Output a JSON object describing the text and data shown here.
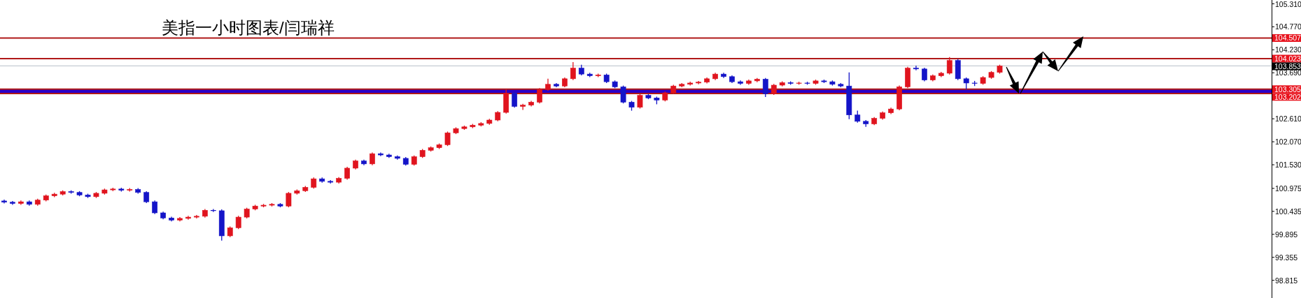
{
  "chart_data": {
    "type": "candlestick",
    "title": "美指一小时图表/闫瑞祥",
    "categories": [
      null,
      null,
      null,
      null,
      null,
      null,
      null,
      null,
      null,
      null,
      null,
      null,
      null,
      null,
      null,
      null,
      null,
      null,
      null,
      null,
      null,
      null,
      null,
      null,
      null,
      null,
      null,
      null,
      null,
      null,
      null,
      null,
      null,
      null,
      null,
      null,
      null,
      null,
      null,
      null,
      null,
      null,
      null,
      null,
      null,
      null,
      null,
      null,
      null,
      null,
      null,
      null,
      null,
      null,
      null,
      null,
      null,
      null,
      null,
      null,
      null,
      null,
      null,
      null,
      null,
      null,
      null,
      null,
      null,
      null,
      null,
      null,
      null,
      null,
      null,
      null,
      null,
      null,
      null,
      null,
      null,
      null,
      null,
      null,
      null,
      null,
      null,
      null,
      null,
      null,
      null,
      null,
      null,
      null,
      null,
      null,
      null,
      null,
      null,
      null,
      null,
      null,
      null,
      null,
      null,
      null,
      null,
      null,
      null,
      null,
      null,
      null,
      null,
      null,
      null,
      null,
      null,
      null,
      null,
      null,
      null,
      null,
      null,
      null,
      null,
      null,
      null,
      null,
      null,
      null,
      null,
      null,
      null,
      null,
      null,
      null,
      null,
      null,
      null,
      null,
      null,
      null,
      null,
      null,
      null,
      null,
      null,
      null,
      null,
      null,
      null,
      null
    ],
    "ohlc": [
      [
        100.68,
        100.71,
        100.62,
        100.65
      ],
      [
        100.65,
        100.68,
        100.59,
        100.62
      ],
      [
        100.62,
        100.69,
        100.59,
        100.66
      ],
      [
        100.66,
        100.69,
        100.57,
        100.6
      ],
      [
        100.6,
        100.73,
        100.57,
        100.7
      ],
      [
        100.7,
        100.83,
        100.67,
        100.8
      ],
      [
        100.8,
        100.87,
        100.77,
        100.84
      ],
      [
        100.84,
        100.93,
        100.81,
        100.9
      ],
      [
        100.9,
        100.93,
        100.85,
        100.88
      ],
      [
        100.88,
        100.91,
        100.79,
        100.82
      ],
      [
        100.82,
        100.85,
        100.75,
        100.78
      ],
      [
        100.78,
        100.89,
        100.75,
        100.86
      ],
      [
        100.86,
        100.97,
        100.83,
        100.94
      ],
      [
        100.94,
        100.99,
        100.91,
        100.96
      ],
      [
        100.96,
        100.99,
        100.9,
        100.93
      ],
      [
        100.93,
        100.98,
        100.9,
        100.95
      ],
      [
        100.95,
        100.98,
        100.85,
        100.88
      ],
      [
        100.88,
        100.91,
        100.63,
        100.66
      ],
      [
        100.66,
        100.69,
        100.37,
        100.4
      ],
      [
        100.4,
        100.43,
        100.25,
        100.28
      ],
      [
        100.28,
        100.31,
        100.2,
        100.23
      ],
      [
        100.23,
        100.3,
        100.2,
        100.27
      ],
      [
        100.27,
        100.33,
        100.24,
        100.3
      ],
      [
        100.3,
        100.35,
        100.27,
        100.32
      ],
      [
        100.32,
        100.49,
        100.29,
        100.46
      ],
      [
        100.46,
        100.49,
        100.42,
        100.45
      ],
      [
        100.45,
        100.48,
        99.75,
        99.86
      ],
      [
        99.86,
        100.08,
        99.83,
        100.05
      ],
      [
        100.05,
        100.33,
        100.02,
        100.3
      ],
      [
        100.3,
        100.52,
        100.27,
        100.49
      ],
      [
        100.49,
        100.59,
        100.46,
        100.56
      ],
      [
        100.56,
        100.61,
        100.53,
        100.58
      ],
      [
        100.58,
        100.63,
        100.55,
        100.6
      ],
      [
        100.6,
        100.63,
        100.53,
        100.56
      ],
      [
        100.56,
        100.89,
        100.53,
        100.86
      ],
      [
        100.86,
        100.95,
        100.83,
        100.92
      ],
      [
        100.92,
        101.03,
        100.89,
        101.0
      ],
      [
        101.0,
        101.23,
        100.97,
        101.2
      ],
      [
        101.2,
        101.23,
        101.11,
        101.14
      ],
      [
        101.14,
        101.17,
        101.09,
        101.12
      ],
      [
        101.12,
        101.24,
        101.09,
        101.21
      ],
      [
        101.21,
        101.48,
        101.18,
        101.45
      ],
      [
        101.45,
        101.65,
        101.42,
        101.62
      ],
      [
        101.62,
        101.65,
        101.52,
        101.55
      ],
      [
        101.55,
        101.82,
        101.52,
        101.79
      ],
      [
        101.79,
        101.82,
        101.73,
        101.76
      ],
      [
        101.76,
        101.79,
        101.69,
        101.72
      ],
      [
        101.72,
        101.75,
        101.65,
        101.68
      ],
      [
        101.68,
        101.71,
        101.51,
        101.54
      ],
      [
        101.54,
        101.75,
        101.51,
        101.72
      ],
      [
        101.72,
        101.9,
        101.69,
        101.87
      ],
      [
        101.87,
        101.96,
        101.84,
        101.93
      ],
      [
        101.93,
        102.03,
        101.9,
        102.0
      ],
      [
        102.0,
        102.31,
        101.97,
        102.28
      ],
      [
        102.28,
        102.41,
        102.25,
        102.38
      ],
      [
        102.38,
        102.45,
        102.35,
        102.42
      ],
      [
        102.42,
        102.49,
        102.39,
        102.46
      ],
      [
        102.46,
        102.53,
        102.43,
        102.5
      ],
      [
        102.5,
        102.61,
        102.47,
        102.58
      ],
      [
        102.58,
        102.79,
        102.55,
        102.76
      ],
      [
        102.76,
        103.3,
        102.73,
        103.21
      ],
      [
        103.21,
        103.24,
        102.87,
        102.9
      ],
      [
        102.9,
        102.96,
        102.82,
        102.93
      ],
      [
        102.93,
        103.03,
        102.9,
        103.0
      ],
      [
        103.0,
        103.33,
        102.97,
        103.3
      ],
      [
        103.3,
        103.55,
        103.27,
        103.42
      ],
      [
        103.42,
        103.45,
        103.35,
        103.38
      ],
      [
        103.38,
        103.58,
        103.35,
        103.55
      ],
      [
        103.55,
        103.94,
        103.52,
        103.8
      ],
      [
        103.8,
        103.88,
        103.63,
        103.66
      ],
      [
        103.66,
        103.69,
        103.59,
        103.62
      ],
      [
        103.62,
        103.67,
        103.59,
        103.64
      ],
      [
        103.64,
        103.67,
        103.45,
        103.48
      ],
      [
        103.48,
        103.51,
        103.33,
        103.36
      ],
      [
        103.36,
        103.39,
        102.97,
        103.0
      ],
      [
        103.0,
        103.03,
        102.8,
        102.88
      ],
      [
        102.88,
        103.19,
        102.85,
        103.16
      ],
      [
        103.16,
        103.19,
        103.07,
        103.1
      ],
      [
        103.1,
        103.13,
        102.95,
        103.05
      ],
      [
        103.05,
        103.25,
        103.02,
        103.22
      ],
      [
        103.22,
        103.41,
        103.19,
        103.38
      ],
      [
        103.38,
        103.45,
        103.35,
        103.42
      ],
      [
        103.42,
        103.48,
        103.39,
        103.45
      ],
      [
        103.45,
        103.5,
        103.42,
        103.47
      ],
      [
        103.47,
        103.58,
        103.44,
        103.55
      ],
      [
        103.55,
        103.69,
        103.52,
        103.66
      ],
      [
        103.66,
        103.69,
        103.57,
        103.6
      ],
      [
        103.6,
        103.63,
        103.45,
        103.48
      ],
      [
        103.48,
        103.51,
        103.41,
        103.44
      ],
      [
        103.44,
        103.53,
        103.41,
        103.5
      ],
      [
        103.5,
        103.57,
        103.47,
        103.54
      ],
      [
        103.54,
        103.57,
        103.12,
        103.2
      ],
      [
        103.2,
        103.43,
        103.17,
        103.4
      ],
      [
        103.4,
        103.49,
        103.37,
        103.46
      ],
      [
        103.46,
        103.49,
        103.41,
        103.44
      ],
      [
        103.44,
        103.48,
        103.41,
        103.45
      ],
      [
        103.45,
        103.48,
        103.41,
        103.44
      ],
      [
        103.44,
        103.53,
        103.41,
        103.5
      ],
      [
        103.5,
        103.53,
        103.45,
        103.48
      ],
      [
        103.48,
        103.51,
        103.39,
        103.42
      ],
      [
        103.42,
        103.45,
        103.35,
        103.38
      ],
      [
        103.38,
        103.7,
        102.6,
        102.7
      ],
      [
        102.7,
        102.8,
        102.52,
        102.55
      ],
      [
        102.55,
        102.58,
        102.42,
        102.49
      ],
      [
        102.49,
        102.65,
        102.46,
        102.62
      ],
      [
        102.62,
        102.78,
        102.59,
        102.75
      ],
      [
        102.75,
        102.87,
        102.72,
        102.84
      ],
      [
        102.84,
        103.39,
        102.81,
        103.36
      ],
      [
        103.36,
        103.83,
        103.33,
        103.8
      ],
      [
        103.8,
        103.86,
        103.75,
        103.78
      ],
      [
        103.78,
        103.81,
        103.49,
        103.52
      ],
      [
        103.52,
        103.65,
        103.49,
        103.62
      ],
      [
        103.62,
        103.71,
        103.59,
        103.68
      ],
      [
        103.68,
        104.06,
        103.65,
        103.98
      ],
      [
        103.98,
        104.01,
        103.52,
        103.55
      ],
      [
        103.55,
        103.58,
        103.3,
        103.45
      ],
      [
        103.45,
        103.5,
        103.38,
        103.44
      ],
      [
        103.44,
        103.61,
        103.41,
        103.58
      ],
      [
        103.58,
        103.73,
        103.55,
        103.7
      ],
      [
        103.7,
        103.88,
        103.67,
        103.85
      ],
      null,
      null,
      null,
      null,
      null,
      null,
      null,
      null,
      null,
      null,
      null,
      null,
      null,
      null,
      null,
      null,
      null,
      null,
      null,
      null,
      null,
      null,
      null,
      null,
      null,
      null,
      null,
      null,
      null,
      null,
      null,
      null
    ],
    "ylim": [
      98.4,
      105.4
    ],
    "yticks": [
      {
        "value": 105.31,
        "label": "105.310"
      },
      {
        "value": 104.77,
        "label": "104.770"
      },
      {
        "value": 104.23,
        "label": "104.230"
      },
      {
        "value": 103.69,
        "label": "103.690"
      },
      {
        "value": 102.61,
        "label": "102.610"
      },
      {
        "value": 102.07,
        "label": "102.070"
      },
      {
        "value": 101.53,
        "label": "101.530"
      },
      100.975,
      100.435,
      99.895,
      99.355,
      98.815
    ],
    "tick_labels": "y",
    "ref_lines": [
      {
        "axis": "y",
        "value": 104.507,
        "label": "104.507",
        "color": "#b01818"
      },
      {
        "axis": "y",
        "value": 104.023,
        "label": "104.023",
        "color": "#b01818"
      },
      {
        "axis": "y",
        "value": 103.853,
        "label": "103.853",
        "color": "#b8c0c8"
      },
      {
        "axis": "y",
        "value": 103.305,
        "label": "103.305",
        "color": "#b01818"
      },
      {
        "axis": "y",
        "value": 103.202,
        "label": "103.202",
        "color": "#b01818"
      }
    ],
    "bands": [
      {
        "axis": "y",
        "from": 103.202,
        "to": 103.305,
        "color": "#2a00c8"
      }
    ]
  }
}
